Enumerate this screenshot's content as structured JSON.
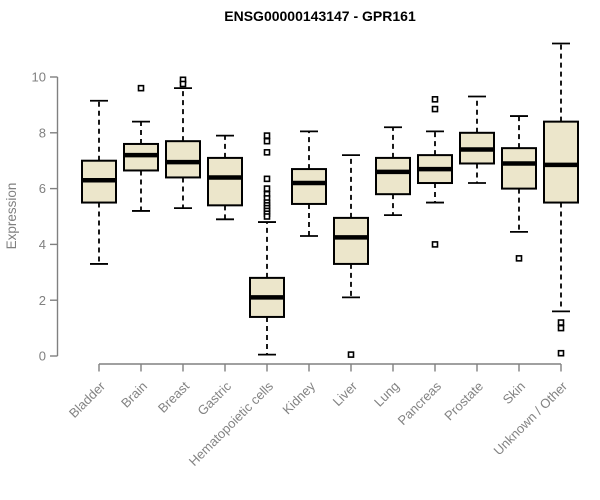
{
  "page": {
    "background": "#FFFFFF"
  },
  "chart_data": {
    "type": "boxplot",
    "title": "ENSG00000143147 - GPR161",
    "ylabel": "Expression",
    "xlabel": "",
    "ylim": [
      0,
      10
    ],
    "yticks": [
      0,
      2,
      4,
      6,
      8,
      10
    ],
    "grid": false,
    "legend": "none",
    "colors": {
      "box_fill": "#ECE6CB",
      "box_stroke": "#000000",
      "median": "#000000",
      "whisker": "#000000",
      "outlier": "#000000",
      "axis": "#808080",
      "title": "#000000"
    },
    "categories": [
      "Bladder",
      "Brain",
      "Breast",
      "Gastric",
      "Hematopoietic cells",
      "Kidney",
      "Liver",
      "Lung",
      "Pancreas",
      "Prostate",
      "Skin",
      "Unknown / Other"
    ],
    "series": [
      {
        "category": "Bladder",
        "whisker_low": 3.3,
        "q1": 5.5,
        "median": 6.3,
        "q3": 7.0,
        "whisker_high": 9.15,
        "outliers": []
      },
      {
        "category": "Brain",
        "whisker_low": 5.2,
        "q1": 6.65,
        "median": 7.2,
        "q3": 7.6,
        "whisker_high": 8.4,
        "outliers": [
          9.6
        ]
      },
      {
        "category": "Breast",
        "whisker_low": 5.3,
        "q1": 6.4,
        "median": 6.95,
        "q3": 7.7,
        "whisker_high": 9.6,
        "outliers": [
          9.9,
          9.75
        ]
      },
      {
        "category": "Gastric",
        "whisker_low": 4.9,
        "q1": 5.4,
        "median": 6.4,
        "q3": 7.1,
        "whisker_high": 7.9,
        "outliers": []
      },
      {
        "category": "Hematopoietic cells",
        "whisker_low": 0.05,
        "q1": 1.4,
        "median": 2.1,
        "q3": 2.8,
        "whisker_high": 4.8,
        "outliers": [
          7.9,
          7.7,
          7.3,
          6.35,
          6.0,
          5.8,
          5.65,
          5.5,
          5.4,
          5.3,
          5.2,
          5.1,
          5.0
        ]
      },
      {
        "category": "Kidney",
        "whisker_low": 4.3,
        "q1": 5.45,
        "median": 6.2,
        "q3": 6.7,
        "whisker_high": 8.05,
        "outliers": []
      },
      {
        "category": "Liver",
        "whisker_low": 2.1,
        "q1": 3.3,
        "median": 4.25,
        "q3": 4.95,
        "whisker_high": 7.2,
        "outliers": [
          0.05
        ]
      },
      {
        "category": "Lung",
        "whisker_low": 5.05,
        "q1": 5.8,
        "median": 6.6,
        "q3": 7.1,
        "whisker_high": 8.2,
        "outliers": []
      },
      {
        "category": "Pancreas",
        "whisker_low": 5.5,
        "q1": 6.2,
        "median": 6.7,
        "q3": 7.2,
        "whisker_high": 8.05,
        "outliers": [
          9.2,
          8.85,
          4.0
        ]
      },
      {
        "category": "Prostate",
        "whisker_low": 6.2,
        "q1": 6.9,
        "median": 7.4,
        "q3": 8.0,
        "whisker_high": 9.3,
        "outliers": []
      },
      {
        "category": "Skin",
        "whisker_low": 4.45,
        "q1": 6.0,
        "median": 6.9,
        "q3": 7.45,
        "whisker_high": 8.6,
        "outliers": [
          3.5
        ]
      },
      {
        "category": "Unknown / Other",
        "whisker_low": 1.6,
        "q1": 5.5,
        "median": 6.85,
        "q3": 8.4,
        "whisker_high": 11.2,
        "outliers": [
          1.2,
          1.0,
          0.1
        ]
      }
    ]
  }
}
